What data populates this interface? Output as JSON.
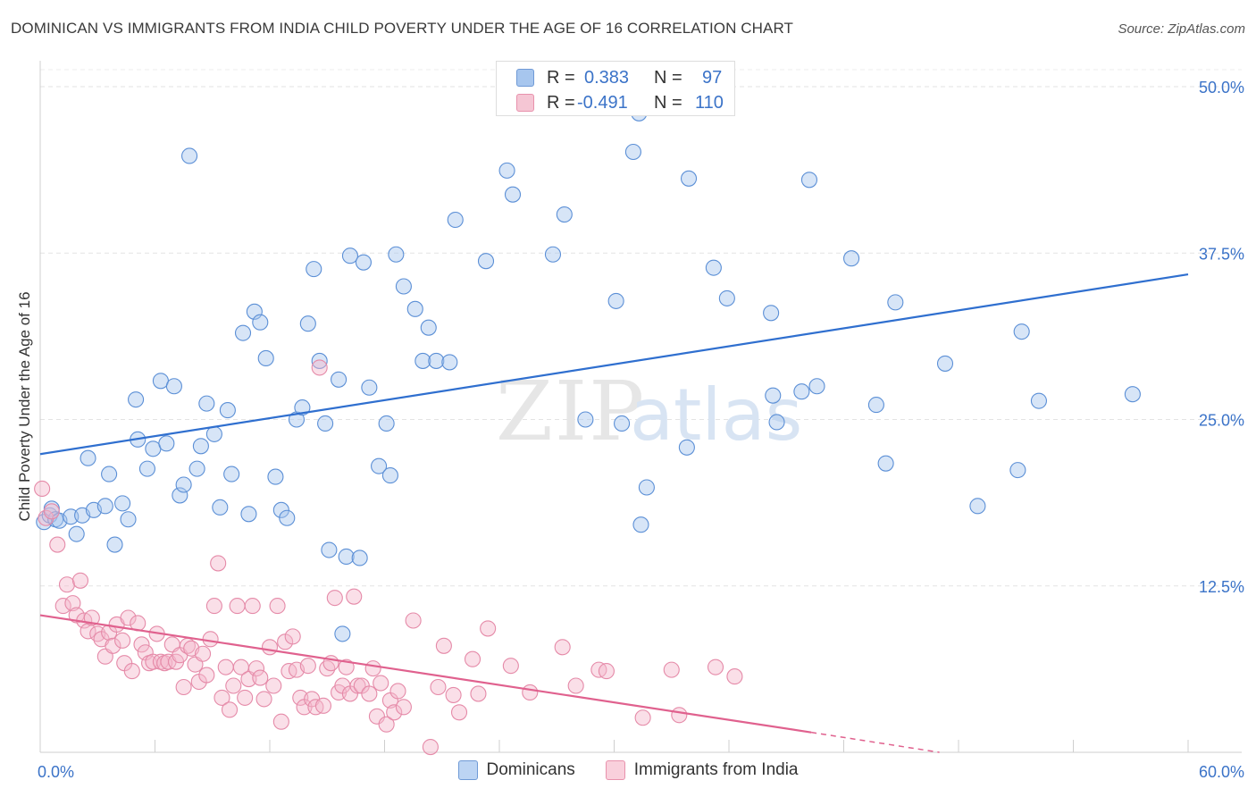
{
  "title": "DOMINICAN VS IMMIGRANTS FROM INDIA CHILD POVERTY UNDER THE AGE OF 16 CORRELATION CHART",
  "source": "Source: ZipAtlas.com",
  "watermark": {
    "zip": "ZIP",
    "atlas": "atlas"
  },
  "stats": [
    {
      "r_label": "R =",
      "r_value": "0.383",
      "n_label": "N =",
      "n_value": "97",
      "color": "#a7c6ee"
    },
    {
      "r_label": "R =",
      "r_value": "-0.491",
      "n_label": "N =",
      "n_value": "110",
      "color": "#f5b8cb"
    }
  ],
  "chart_data": {
    "type": "scatter",
    "title": "DOMINICAN VS IMMIGRANTS FROM INDIA CHILD POVERTY UNDER THE AGE OF 16 CORRELATION CHART",
    "xlabel": "",
    "ylabel": "Child Poverty Under the Age of 16",
    "xlim": [
      0,
      60
    ],
    "ylim": [
      0,
      50
    ],
    "x_tick_labels": [
      "0.0%",
      "60.0%"
    ],
    "y_tick_labels": [
      "12.5%",
      "25.0%",
      "37.5%",
      "50.0%"
    ],
    "y_ticks": [
      12.5,
      25,
      37.5,
      50
    ],
    "grid": true,
    "legend": [
      "Dominicans",
      "Immigrants from India"
    ],
    "series": [
      {
        "name": "Dominicans",
        "color": "#5b8fd6",
        "fill": "#a7c6ee",
        "trend": {
          "x0": 0,
          "y0": 22.4,
          "x1": 60,
          "y1": 35.9,
          "color": "#2f6fcf"
        },
        "points": [
          [
            0.2,
            17.3
          ],
          [
            0.5,
            17.8
          ],
          [
            0.6,
            18.3
          ],
          [
            0.8,
            17.5
          ],
          [
            1.0,
            17.4
          ],
          [
            1.6,
            17.7
          ],
          [
            1.9,
            16.4
          ],
          [
            2.2,
            17.8
          ],
          [
            2.5,
            22.1
          ],
          [
            2.8,
            18.2
          ],
          [
            3.4,
            18.5
          ],
          [
            3.6,
            20.9
          ],
          [
            3.9,
            15.6
          ],
          [
            4.3,
            18.7
          ],
          [
            4.6,
            17.5
          ],
          [
            5.0,
            26.5
          ],
          [
            5.1,
            23.5
          ],
          [
            5.6,
            21.3
          ],
          [
            5.9,
            22.8
          ],
          [
            6.3,
            27.9
          ],
          [
            6.6,
            23.2
          ],
          [
            7.0,
            27.5
          ],
          [
            7.3,
            19.3
          ],
          [
            7.5,
            20.1
          ],
          [
            7.8,
            44.8
          ],
          [
            8.2,
            21.3
          ],
          [
            8.4,
            23.0
          ],
          [
            8.7,
            26.2
          ],
          [
            9.1,
            23.9
          ],
          [
            9.4,
            18.4
          ],
          [
            9.8,
            25.7
          ],
          [
            10.0,
            20.9
          ],
          [
            10.6,
            31.5
          ],
          [
            10.9,
            17.9
          ],
          [
            11.2,
            33.1
          ],
          [
            11.5,
            32.3
          ],
          [
            11.8,
            29.6
          ],
          [
            12.3,
            20.7
          ],
          [
            12.6,
            18.2
          ],
          [
            12.9,
            17.6
          ],
          [
            13.4,
            25.0
          ],
          [
            13.7,
            25.9
          ],
          [
            14.0,
            32.2
          ],
          [
            14.3,
            36.3
          ],
          [
            14.6,
            29.4
          ],
          [
            14.9,
            24.7
          ],
          [
            15.1,
            15.2
          ],
          [
            15.6,
            28.0
          ],
          [
            16.0,
            14.7
          ],
          [
            16.2,
            37.3
          ],
          [
            16.7,
            14.6
          ],
          [
            16.9,
            36.8
          ],
          [
            17.2,
            27.4
          ],
          [
            17.7,
            21.5
          ],
          [
            18.1,
            24.7
          ],
          [
            18.3,
            20.8
          ],
          [
            18.6,
            37.4
          ],
          [
            19.0,
            35.0
          ],
          [
            19.6,
            33.3
          ],
          [
            20.0,
            29.4
          ],
          [
            20.3,
            31.9
          ],
          [
            20.7,
            29.4
          ],
          [
            21.4,
            29.3
          ],
          [
            21.7,
            40.0
          ],
          [
            23.3,
            36.9
          ],
          [
            24.4,
            43.7
          ],
          [
            24.7,
            41.9
          ],
          [
            26.8,
            37.4
          ],
          [
            27.4,
            40.4
          ],
          [
            28.5,
            25.0
          ],
          [
            30.1,
            33.9
          ],
          [
            30.4,
            24.7
          ],
          [
            31.0,
            45.1
          ],
          [
            31.4,
            17.1
          ],
          [
            31.7,
            19.9
          ],
          [
            33.8,
            22.9
          ],
          [
            33.9,
            43.1
          ],
          [
            35.2,
            36.4
          ],
          [
            35.9,
            34.1
          ],
          [
            38.2,
            33.0
          ],
          [
            38.3,
            26.8
          ],
          [
            38.5,
            24.8
          ],
          [
            39.8,
            27.1
          ],
          [
            40.2,
            43.0
          ],
          [
            40.6,
            27.5
          ],
          [
            42.4,
            37.1
          ],
          [
            43.7,
            26.1
          ],
          [
            44.2,
            21.7
          ],
          [
            44.7,
            33.8
          ],
          [
            47.3,
            29.2
          ],
          [
            49.0,
            18.5
          ],
          [
            51.1,
            21.2
          ],
          [
            51.3,
            31.6
          ],
          [
            52.2,
            26.4
          ],
          [
            57.1,
            26.9
          ],
          [
            15.8,
            8.9
          ],
          [
            31.3,
            48.0
          ]
        ]
      },
      {
        "name": "Immigrants from India",
        "color": "#e58aa8",
        "fill": "#f5b8cb",
        "trend": {
          "x0": 0,
          "y0": 10.3,
          "x1": 40.3,
          "y1": 1.5,
          "dash_to_x": 47.0,
          "dash_to_y": 0.0,
          "color": "#e0618e"
        },
        "points": [
          [
            0.1,
            19.8
          ],
          [
            0.3,
            17.6
          ],
          [
            0.6,
            18.1
          ],
          [
            0.9,
            15.6
          ],
          [
            1.2,
            11.0
          ],
          [
            1.4,
            12.6
          ],
          [
            1.7,
            11.2
          ],
          [
            1.9,
            10.3
          ],
          [
            2.1,
            12.9
          ],
          [
            2.3,
            9.9
          ],
          [
            2.5,
            9.1
          ],
          [
            2.7,
            10.1
          ],
          [
            3.0,
            8.9
          ],
          [
            3.2,
            8.5
          ],
          [
            3.4,
            7.2
          ],
          [
            3.6,
            9.0
          ],
          [
            3.8,
            8.0
          ],
          [
            4.0,
            9.6
          ],
          [
            4.3,
            8.4
          ],
          [
            4.4,
            6.7
          ],
          [
            4.6,
            10.1
          ],
          [
            4.8,
            6.1
          ],
          [
            5.1,
            9.7
          ],
          [
            5.3,
            8.1
          ],
          [
            5.5,
            7.5
          ],
          [
            5.7,
            6.7
          ],
          [
            5.9,
            6.8
          ],
          [
            6.1,
            8.9
          ],
          [
            6.3,
            6.8
          ],
          [
            6.5,
            6.7
          ],
          [
            6.7,
            6.8
          ],
          [
            6.9,
            8.1
          ],
          [
            7.1,
            6.8
          ],
          [
            7.3,
            7.3
          ],
          [
            7.5,
            4.9
          ],
          [
            7.7,
            8.0
          ],
          [
            7.9,
            7.8
          ],
          [
            8.1,
            6.6
          ],
          [
            8.3,
            5.3
          ],
          [
            8.5,
            7.4
          ],
          [
            8.7,
            5.8
          ],
          [
            8.9,
            8.5
          ],
          [
            9.1,
            11.0
          ],
          [
            9.3,
            14.2
          ],
          [
            9.5,
            4.1
          ],
          [
            9.7,
            6.4
          ],
          [
            9.9,
            3.2
          ],
          [
            10.1,
            5.0
          ],
          [
            10.3,
            11.0
          ],
          [
            10.5,
            6.4
          ],
          [
            10.7,
            4.1
          ],
          [
            10.9,
            5.5
          ],
          [
            11.1,
            11.0
          ],
          [
            11.3,
            6.3
          ],
          [
            11.5,
            5.6
          ],
          [
            11.7,
            4.0
          ],
          [
            12.0,
            7.9
          ],
          [
            12.2,
            5.0
          ],
          [
            12.4,
            11.0
          ],
          [
            12.6,
            2.3
          ],
          [
            12.8,
            8.3
          ],
          [
            13.0,
            6.1
          ],
          [
            13.2,
            8.7
          ],
          [
            13.4,
            6.2
          ],
          [
            13.6,
            4.1
          ],
          [
            13.8,
            3.4
          ],
          [
            14.0,
            6.5
          ],
          [
            14.2,
            4.0
          ],
          [
            14.4,
            3.4
          ],
          [
            14.6,
            28.9
          ],
          [
            14.8,
            3.5
          ],
          [
            15.0,
            6.3
          ],
          [
            15.2,
            6.7
          ],
          [
            15.4,
            11.6
          ],
          [
            15.6,
            4.5
          ],
          [
            15.8,
            5.0
          ],
          [
            16.0,
            6.4
          ],
          [
            16.2,
            4.4
          ],
          [
            16.4,
            11.7
          ],
          [
            16.6,
            5.0
          ],
          [
            16.8,
            5.0
          ],
          [
            17.2,
            4.4
          ],
          [
            17.4,
            6.3
          ],
          [
            17.6,
            2.7
          ],
          [
            17.8,
            5.2
          ],
          [
            18.1,
            2.1
          ],
          [
            18.3,
            3.9
          ],
          [
            18.5,
            3.0
          ],
          [
            18.7,
            4.6
          ],
          [
            19.0,
            3.4
          ],
          [
            19.5,
            9.9
          ],
          [
            20.4,
            0.4
          ],
          [
            20.8,
            4.9
          ],
          [
            21.1,
            8.0
          ],
          [
            21.6,
            4.3
          ],
          [
            21.9,
            3.0
          ],
          [
            22.6,
            7.0
          ],
          [
            22.9,
            4.4
          ],
          [
            23.4,
            9.3
          ],
          [
            24.6,
            6.5
          ],
          [
            25.6,
            4.5
          ],
          [
            27.3,
            7.9
          ],
          [
            28.0,
            5.0
          ],
          [
            29.2,
            6.2
          ],
          [
            29.6,
            6.1
          ],
          [
            31.5,
            2.6
          ],
          [
            33.0,
            6.2
          ],
          [
            33.4,
            2.8
          ],
          [
            35.3,
            6.4
          ],
          [
            36.3,
            5.7
          ]
        ]
      }
    ]
  }
}
